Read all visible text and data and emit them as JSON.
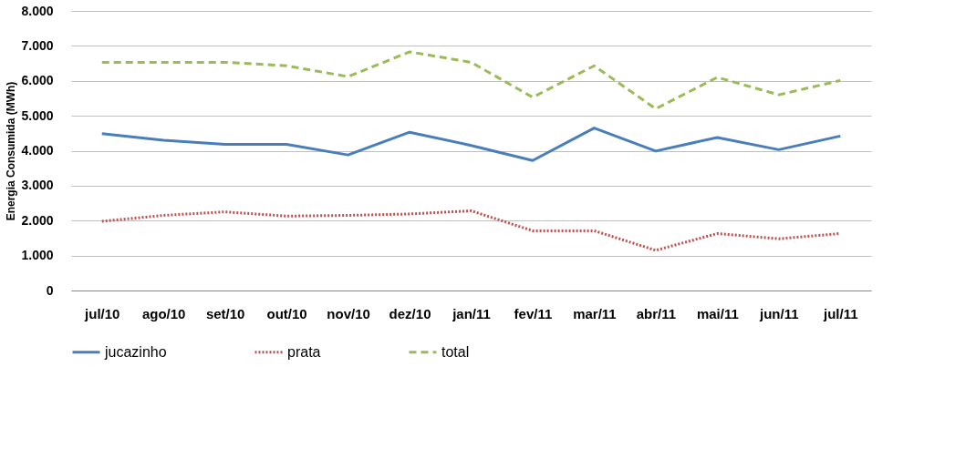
{
  "chart_data": {
    "type": "line",
    "ylabel": "Energia Consumida (MWh)",
    "categories": [
      "jul/10",
      "ago/10",
      "set/10",
      "out/10",
      "nov/10",
      "dez/10",
      "jan/11",
      "fev/11",
      "mar/11",
      "abr/11",
      "mai/11",
      "jun/11",
      "jul/11"
    ],
    "series": [
      {
        "name": "jucazinho",
        "color": "#4a7ebb",
        "line_style": "solid",
        "values": [
          4490,
          4300,
          4180,
          4180,
          3880,
          4530,
          4150,
          3720,
          4650,
          3990,
          4380,
          4030,
          4420
        ]
      },
      {
        "name": "prata",
        "color": "#c0504d",
        "line_style": "dotted",
        "values": [
          1980,
          2150,
          2250,
          2130,
          2150,
          2190,
          2280,
          1710,
          1710,
          1150,
          1630,
          1480,
          1630
        ]
      },
      {
        "name": "total",
        "color": "#9bbb59",
        "line_style": "dashed",
        "values": [
          6530,
          6530,
          6530,
          6430,
          6120,
          6830,
          6530,
          5530,
          6430,
          5200,
          6100,
          5600,
          6010
        ]
      }
    ],
    "ylim": [
      0,
      8000
    ],
    "yticks": [
      {
        "value": 0,
        "label": "0"
      },
      {
        "value": 1000,
        "label": "1.000"
      },
      {
        "value": 2000,
        "label": "2.000"
      },
      {
        "value": 3000,
        "label": "3.000"
      },
      {
        "value": 4000,
        "label": "4.000"
      },
      {
        "value": 5000,
        "label": "5.000"
      },
      {
        "value": 6000,
        "label": "6.000"
      },
      {
        "value": 7000,
        "label": "7.000"
      },
      {
        "value": 8000,
        "label": "8.000"
      }
    ],
    "grid": "y",
    "legend": "bottom",
    "marker": "none"
  }
}
